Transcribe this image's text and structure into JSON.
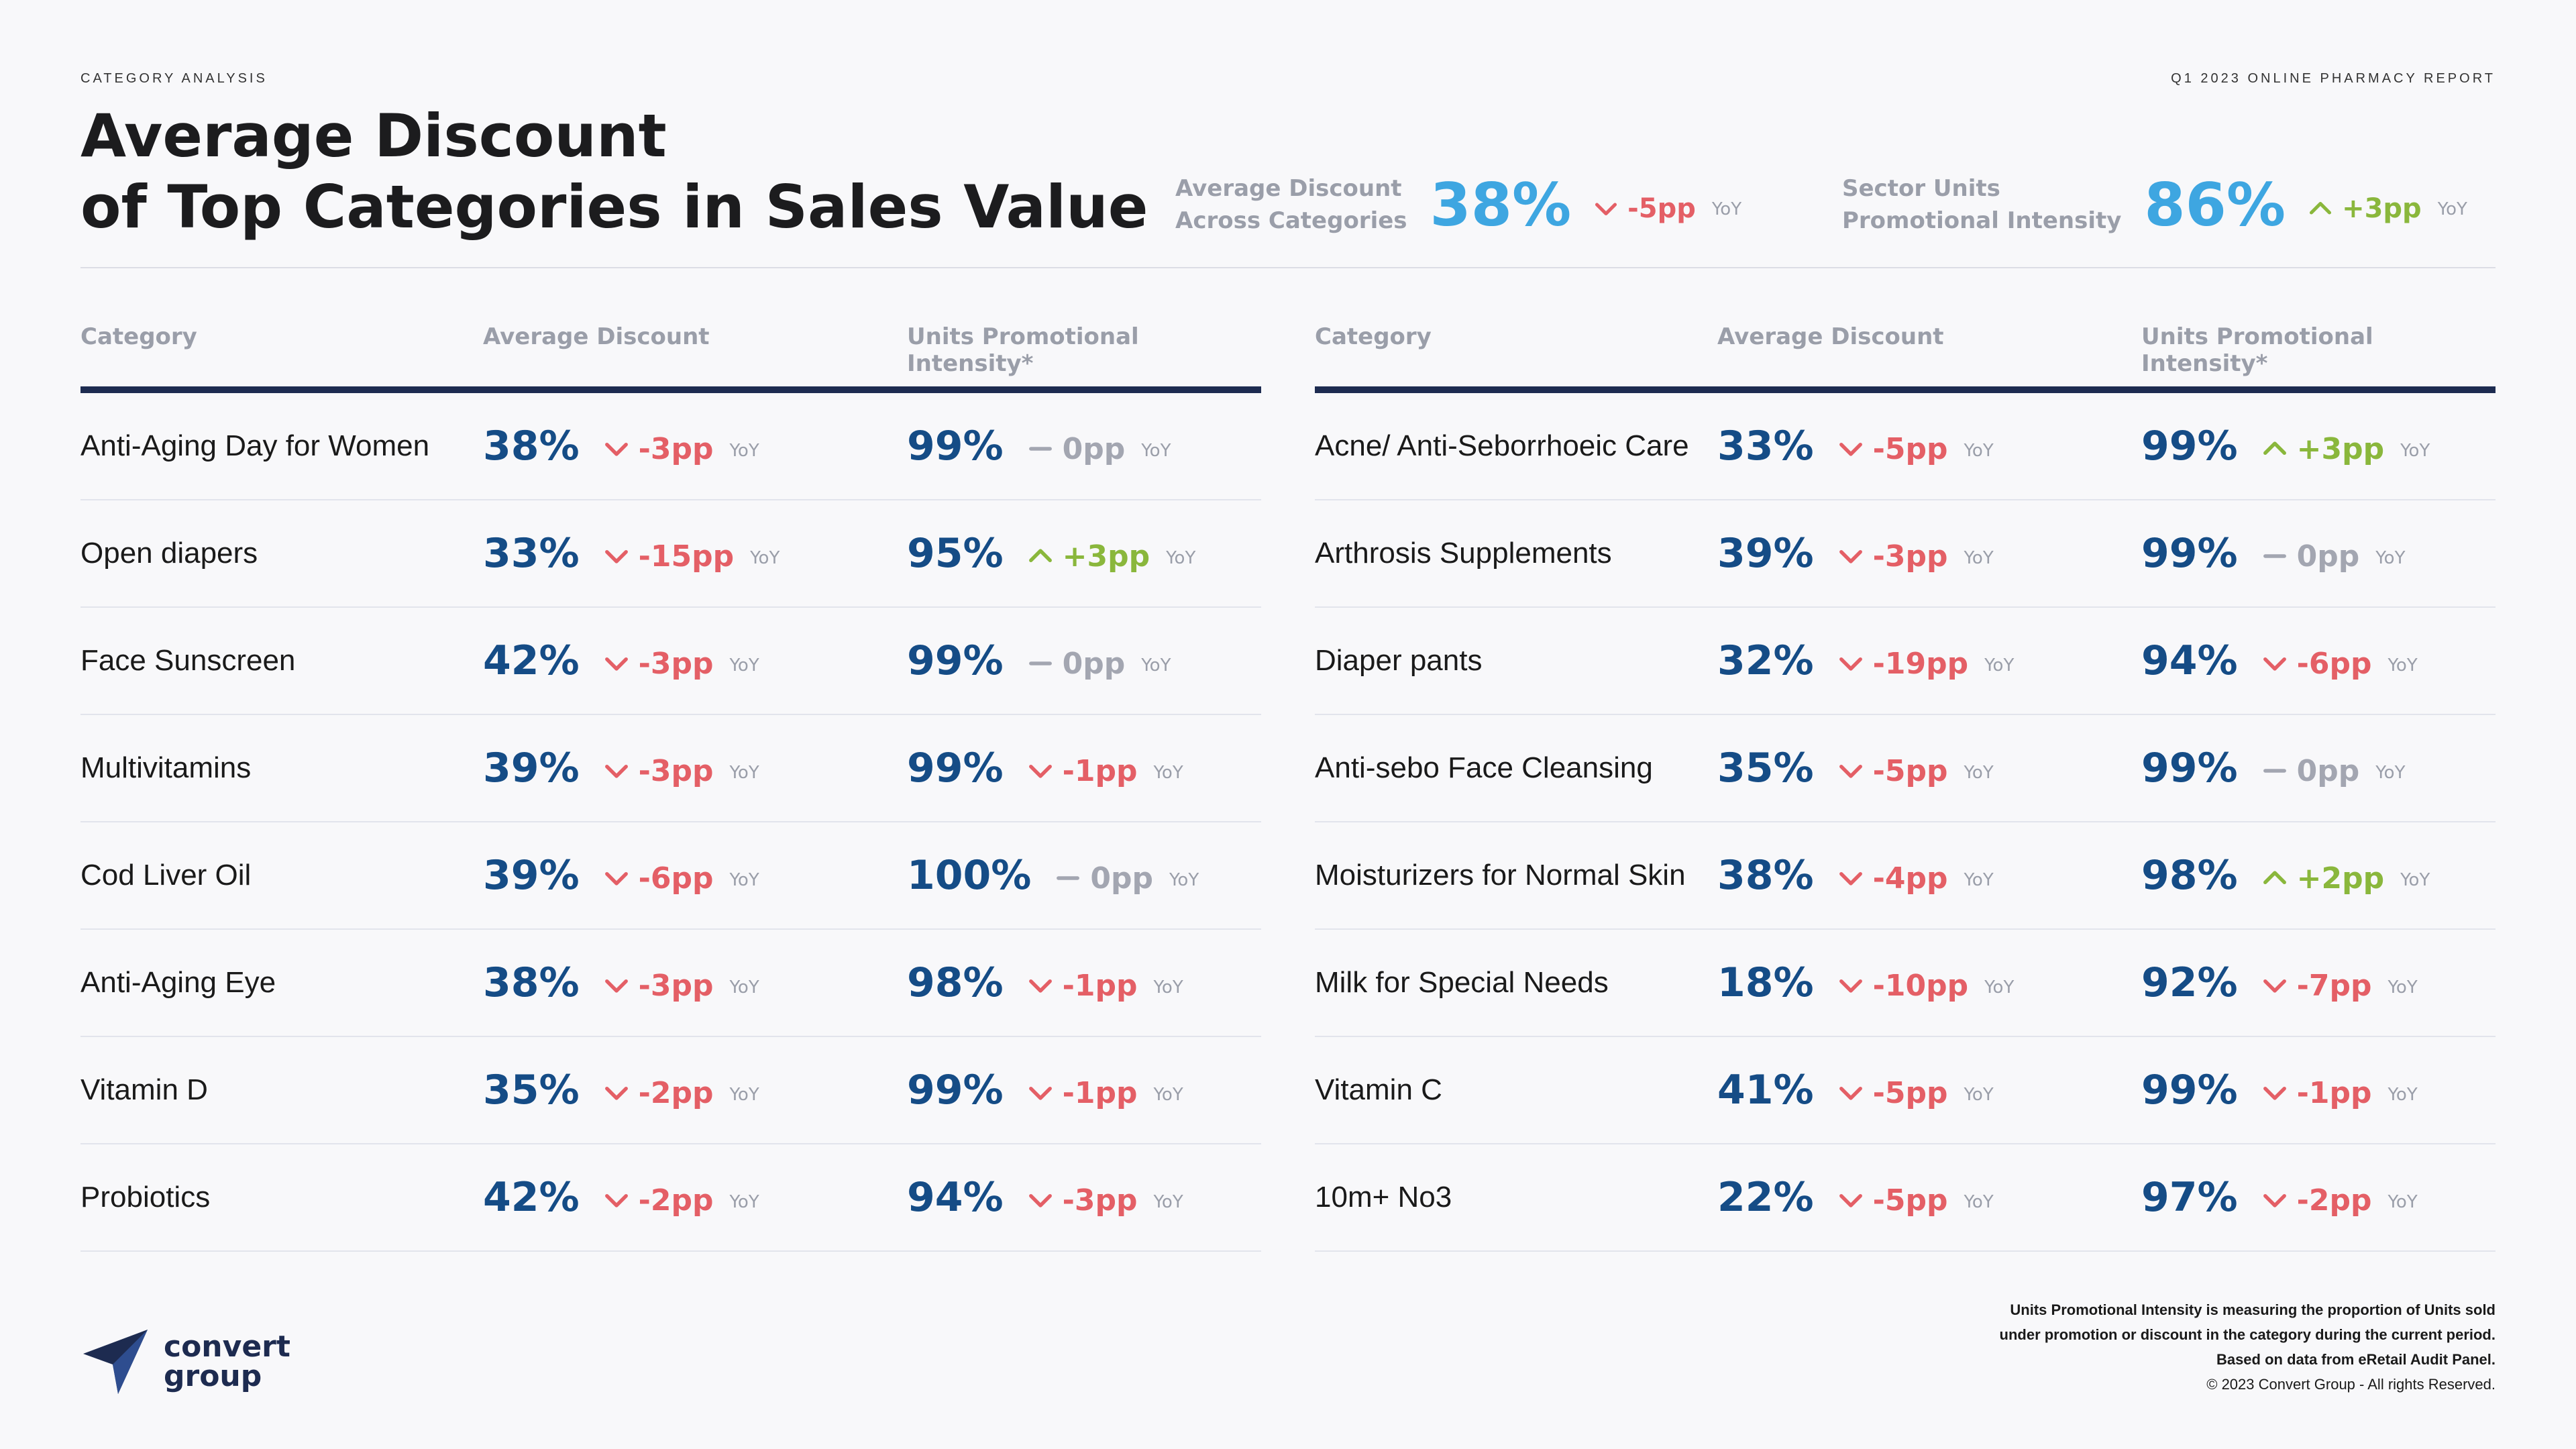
{
  "header": {
    "eyebrow_left": "CATEGORY ANALYSIS",
    "eyebrow_right": "Q1 2023 ONLINE PHARMACY REPORT",
    "title_line1": "Average Discount",
    "title_line2": "of Top Categories in Sales Value"
  },
  "kpis": [
    {
      "label_line1": "Average Discount",
      "label_line2": "Across Categories",
      "value": "38%",
      "change": "-5pp",
      "direction": "down",
      "yoy": "YoY"
    },
    {
      "label_line1": "Sector Units",
      "label_line2": "Promotional Intensity",
      "value": "86%",
      "change": "+3pp",
      "direction": "up",
      "yoy": "YoY"
    }
  ],
  "columns": {
    "category": "Category",
    "avg_discount": "Average Discount",
    "intensity": "Units Promotional Intensity*"
  },
  "tables": [
    {
      "rows": [
        {
          "category": "Anti-Aging Day for Women",
          "discount": "38%",
          "discount_change": "-3pp",
          "discount_dir": "down",
          "intensity": "99%",
          "intensity_change": "0pp",
          "intensity_dir": "flat"
        },
        {
          "category": "Open diapers",
          "discount": "33%",
          "discount_change": "-15pp",
          "discount_dir": "down",
          "intensity": "95%",
          "intensity_change": "+3pp",
          "intensity_dir": "up"
        },
        {
          "category": "Face Sunscreen",
          "discount": "42%",
          "discount_change": "-3pp",
          "discount_dir": "down",
          "intensity": "99%",
          "intensity_change": "0pp",
          "intensity_dir": "flat"
        },
        {
          "category": "Multivitamins",
          "discount": "39%",
          "discount_change": "-3pp",
          "discount_dir": "down",
          "intensity": "99%",
          "intensity_change": "-1pp",
          "intensity_dir": "down"
        },
        {
          "category": "Cod Liver Oil",
          "discount": "39%",
          "discount_change": "-6pp",
          "discount_dir": "down",
          "intensity": "100%",
          "intensity_change": "0pp",
          "intensity_dir": "flat"
        },
        {
          "category": "Anti-Aging Eye",
          "discount": "38%",
          "discount_change": "-3pp",
          "discount_dir": "down",
          "intensity": "98%",
          "intensity_change": "-1pp",
          "intensity_dir": "down"
        },
        {
          "category": "Vitamin D",
          "discount": "35%",
          "discount_change": "-2pp",
          "discount_dir": "down",
          "intensity": "99%",
          "intensity_change": "-1pp",
          "intensity_dir": "down"
        },
        {
          "category": "Probiotics",
          "discount": "42%",
          "discount_change": "-2pp",
          "discount_dir": "down",
          "intensity": "94%",
          "intensity_change": "-3pp",
          "intensity_dir": "down"
        }
      ]
    },
    {
      "rows": [
        {
          "category": "Acne/ Anti-Seborrhoeic Care",
          "discount": "33%",
          "discount_change": "-5pp",
          "discount_dir": "down",
          "intensity": "99%",
          "intensity_change": "+3pp",
          "intensity_dir": "up"
        },
        {
          "category": "Arthrosis Supplements",
          "discount": "39%",
          "discount_change": "-3pp",
          "discount_dir": "down",
          "intensity": "99%",
          "intensity_change": "0pp",
          "intensity_dir": "flat"
        },
        {
          "category": "Diaper pants",
          "discount": "32%",
          "discount_change": "-19pp",
          "discount_dir": "down",
          "intensity": "94%",
          "intensity_change": "-6pp",
          "intensity_dir": "down"
        },
        {
          "category": "Anti-sebo Face Cleansing",
          "discount": "35%",
          "discount_change": "-5pp",
          "discount_dir": "down",
          "intensity": "99%",
          "intensity_change": "0pp",
          "intensity_dir": "flat"
        },
        {
          "category": "Moisturizers for Normal Skin",
          "discount": "38%",
          "discount_change": "-4pp",
          "discount_dir": "down",
          "intensity": "98%",
          "intensity_change": "+2pp",
          "intensity_dir": "up"
        },
        {
          "category": "Milk for Special Needs",
          "discount": "18%",
          "discount_change": "-10pp",
          "discount_dir": "down",
          "intensity": "92%",
          "intensity_change": "-7pp",
          "intensity_dir": "down"
        },
        {
          "category": "Vitamin C",
          "discount": "41%",
          "discount_change": "-5pp",
          "discount_dir": "down",
          "intensity": "99%",
          "intensity_change": "-1pp",
          "intensity_dir": "down"
        },
        {
          "category": "10m+ No3",
          "discount": "22%",
          "discount_change": "-5pp",
          "discount_dir": "down",
          "intensity": "97%",
          "intensity_change": "-2pp",
          "intensity_dir": "down"
        }
      ]
    }
  ],
  "yoy_label": "YoY",
  "logo": {
    "line1": "convert",
    "line2": "group",
    "icon": "paper-plane-icon"
  },
  "footer": {
    "note_line1": "Units Promotional Intensity is measuring the proportion of Units sold",
    "note_line2": "under promotion or discount in the category during the current period.",
    "note_line3": "Based on data from eRetail Audit Panel.",
    "copyright": "© 2023 Convert Group - All rights Reserved."
  },
  "colors": {
    "value_blue": "#154c86",
    "kpi_blue": "#3ea6e1",
    "down_red": "#e45f66",
    "up_green": "#8ab73c",
    "flat_gray": "#a3a6b1",
    "navy": "#1d2b50"
  }
}
